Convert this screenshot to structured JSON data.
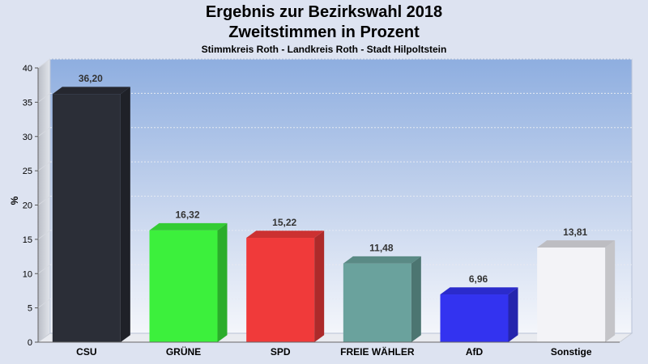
{
  "chart_data": {
    "type": "bar",
    "title": "Ergebnis zur Bezirkswahl 2018",
    "subtitle": "Zweitstimmen in Prozent",
    "subsubtitle": "Stimmkreis Roth - Landkreis Roth - Stadt Hilpoltstein",
    "ylabel": "%",
    "xlabel": "",
    "ylim": [
      0,
      40
    ],
    "yticks": [
      "0",
      "5",
      "10",
      "15",
      "20",
      "25",
      "30",
      "35",
      "40"
    ],
    "categories": [
      "CSU",
      "GRÜNE",
      "SPD",
      "FREIE WÄHLER",
      "AfD",
      "Sonstige"
    ],
    "values": [
      36.2,
      16.32,
      15.22,
      11.48,
      6.96,
      13.81
    ],
    "value_labels": [
      "36,20",
      "16,32",
      "15,22",
      "11,48",
      "6,96",
      "13,81"
    ],
    "colors": [
      "#2b2e37",
      "#3cf03c",
      "#f03a3a",
      "#6aa29d",
      "#3333f0",
      "#f3f3f7"
    ],
    "grid": true
  }
}
